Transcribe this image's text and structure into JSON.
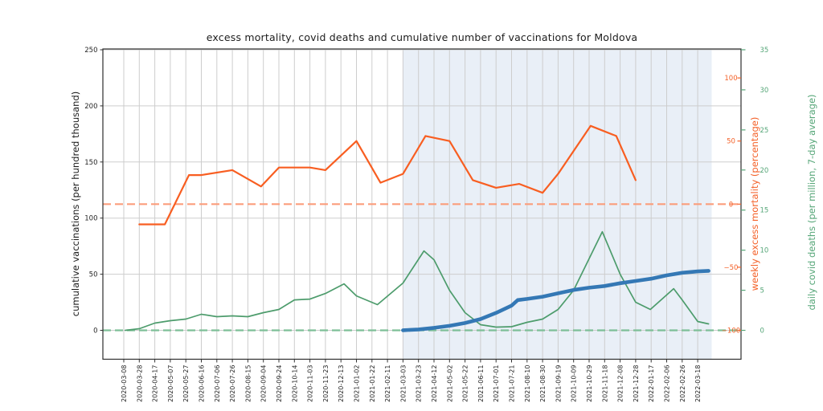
{
  "chart_data": {
    "type": "line",
    "title": "excess mortality, covid deaths and cumulative number of vaccinations for Moldova",
    "x_axis": {
      "tick_labels": [
        "2020-03-08",
        "2020-03-28",
        "2020-04-17",
        "2020-05-07",
        "2020-05-27",
        "2020-06-16",
        "2020-07-06",
        "2020-07-26",
        "2020-08-15",
        "2020-09-04",
        "2020-09-24",
        "2020-10-14",
        "2020-11-03",
        "2020-11-23",
        "2020-12-13",
        "2021-01-02",
        "2021-01-22",
        "2021-02-11",
        "2021-03-03",
        "2021-03-23",
        "2021-04-12",
        "2021-05-02",
        "2021-05-22",
        "2021-06-11",
        "2021-07-01",
        "2021-07-21",
        "2021-08-10",
        "2021-08-30",
        "2021-09-19",
        "2021-10-09",
        "2021-10-29",
        "2021-11-18",
        "2021-12-08",
        "2021-12-28",
        "2022-01-17",
        "2022-02-06",
        "2022-02-26",
        "2022-03-18"
      ]
    },
    "y_axis_left": {
      "label": "cumulative vaccinations (per hundred thousand)",
      "ticks": [
        0,
        50,
        100,
        150,
        200,
        250
      ],
      "color": "#262626"
    },
    "y_axis_right_inner": {
      "label": "weekly excess mortality (percentage)",
      "tick_labels": [
        "100",
        "50",
        "0",
        "−50",
        "−100"
      ],
      "tick_values": [
        100,
        50,
        0,
        -50,
        -100
      ],
      "color": "#f4622a"
    },
    "y_axis_right_outer": {
      "label": "daily covid deaths (per million, 7-day average)",
      "tick_labels": [
        "0",
        "5",
        "10",
        "15",
        "20",
        "25",
        "30",
        "35"
      ],
      "tick_values": [
        0,
        5,
        10,
        15,
        20,
        25,
        30,
        35
      ],
      "color": "#56a678"
    },
    "series": [
      {
        "id": "covid_deaths",
        "name": "daily covid deaths (per million, 7-day average)",
        "axis": "right_outer",
        "color": "#4d9c6c",
        "points": [
          [
            "2020-03-10",
            0
          ],
          [
            "2020-03-28",
            0.2
          ],
          [
            "2020-04-17",
            0.9
          ],
          [
            "2020-05-07",
            1.2
          ],
          [
            "2020-05-27",
            1.4
          ],
          [
            "2020-06-16",
            2.0
          ],
          [
            "2020-07-06",
            1.7
          ],
          [
            "2020-07-26",
            1.8
          ],
          [
            "2020-08-15",
            1.7
          ],
          [
            "2020-09-04",
            2.2
          ],
          [
            "2020-09-24",
            2.6
          ],
          [
            "2020-10-14",
            3.8
          ],
          [
            "2020-11-03",
            3.9
          ],
          [
            "2020-11-23",
            4.6
          ],
          [
            "2020-12-17",
            5.8
          ],
          [
            "2021-01-02",
            4.3
          ],
          [
            "2021-01-29",
            3.2
          ],
          [
            "2021-03-03",
            5.9
          ],
          [
            "2021-03-30",
            9.9
          ],
          [
            "2021-04-12",
            8.8
          ],
          [
            "2021-05-02",
            5.0
          ],
          [
            "2021-05-22",
            2.2
          ],
          [
            "2021-06-11",
            0.7
          ],
          [
            "2021-07-01",
            0.4
          ],
          [
            "2021-07-21",
            0.45
          ],
          [
            "2021-08-10",
            1.0
          ],
          [
            "2021-08-30",
            1.4
          ],
          [
            "2021-09-19",
            2.6
          ],
          [
            "2021-10-09",
            5.0
          ],
          [
            "2021-11-15",
            12.3
          ],
          [
            "2021-12-08",
            7.0
          ],
          [
            "2021-12-28",
            3.5
          ],
          [
            "2022-01-16",
            2.6
          ],
          [
            "2022-02-15",
            5.2
          ],
          [
            "2022-02-26",
            3.8
          ],
          [
            "2022-03-18",
            1.1
          ],
          [
            "2022-04-01",
            0.8
          ]
        ]
      },
      {
        "id": "vaccinations",
        "name": "cumulative vaccinations (per hundred thousand)",
        "axis": "left",
        "color": "#3478b5",
        "points": [
          [
            "2021-03-03",
            0.1
          ],
          [
            "2021-03-23",
            0.8
          ],
          [
            "2021-04-12",
            2.2
          ],
          [
            "2021-05-02",
            4
          ],
          [
            "2021-05-22",
            6.5
          ],
          [
            "2021-06-11",
            10
          ],
          [
            "2021-07-01",
            15.5
          ],
          [
            "2021-07-21",
            22
          ],
          [
            "2021-07-29",
            27
          ],
          [
            "2021-08-10",
            28
          ],
          [
            "2021-08-30",
            30
          ],
          [
            "2021-09-19",
            33
          ],
          [
            "2021-10-09",
            36
          ],
          [
            "2021-10-29",
            38
          ],
          [
            "2021-11-18",
            39.5
          ],
          [
            "2021-12-08",
            42
          ],
          [
            "2021-12-28",
            44
          ],
          [
            "2022-01-17",
            46
          ],
          [
            "2022-02-06",
            49
          ],
          [
            "2022-02-26",
            51.3
          ],
          [
            "2022-03-18",
            52.5
          ],
          [
            "2022-04-01",
            53
          ]
        ]
      },
      {
        "id": "excess_mortality",
        "name": "weekly excess mortality (percentage)",
        "axis": "right_inner",
        "color": "#f85e21",
        "points": [
          [
            "2020-03-28",
            -16
          ],
          [
            "2020-04-30",
            -16
          ],
          [
            "2020-05-31",
            23
          ],
          [
            "2020-06-16",
            23
          ],
          [
            "2020-07-26",
            27
          ],
          [
            "2020-09-01",
            14
          ],
          [
            "2020-09-24",
            29
          ],
          [
            "2020-11-03",
            29
          ],
          [
            "2020-11-23",
            27
          ],
          [
            "2021-01-02",
            50
          ],
          [
            "2021-02-02",
            17
          ],
          [
            "2021-03-03",
            24
          ],
          [
            "2021-04-01",
            54
          ],
          [
            "2021-05-02",
            50
          ],
          [
            "2021-06-01",
            19
          ],
          [
            "2021-07-01",
            13
          ],
          [
            "2021-07-31",
            16
          ],
          [
            "2021-08-30",
            9
          ],
          [
            "2021-09-19",
            24
          ],
          [
            "2021-10-31",
            62
          ],
          [
            "2021-12-03",
            54
          ],
          [
            "2021-12-28",
            19
          ]
        ]
      }
    ],
    "reference_lines": [
      {
        "id": "excess_mortality_zero",
        "axis": "right_inner",
        "value": 0,
        "style": "dashed",
        "color": "#fb9d7c"
      },
      {
        "id": "covid_deaths_zero",
        "axis": "right_outer",
        "value": 0,
        "style": "dashed",
        "color": "#7dbf97"
      }
    ],
    "shaded_region": {
      "from": "2021-03-03",
      "to": "2022-04-05",
      "color": "#e9eff7"
    },
    "grid": {
      "color": "#cdcdcd",
      "spine_color": "#2d2d2d",
      "tick_text_color": "#262626"
    }
  }
}
